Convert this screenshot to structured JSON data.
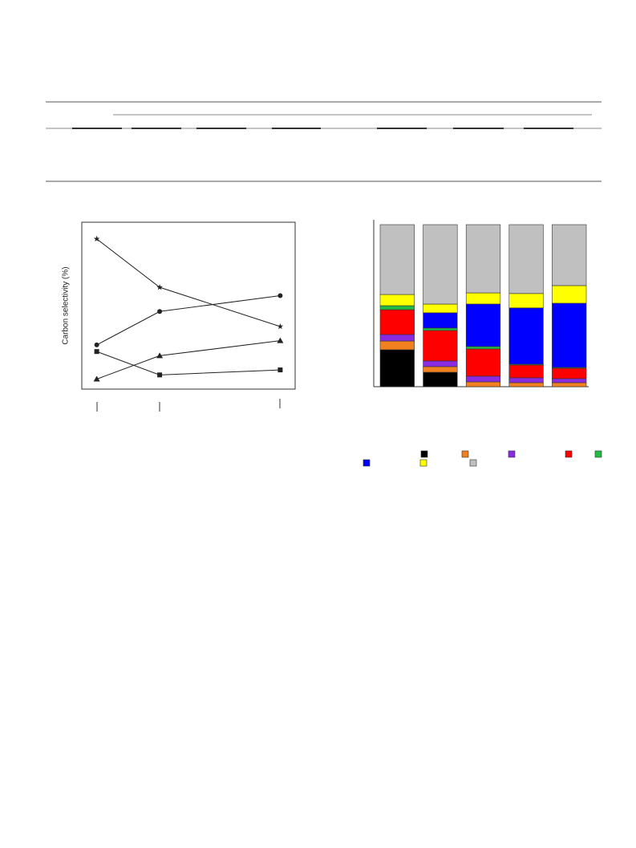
{
  "chart_data": [
    {
      "type": "line",
      "ylabel": "Carbon selectivity (%)",
      "xlim": [
        0,
        100
      ],
      "ylim": [
        0,
        100
      ],
      "x": [
        7,
        36.5,
        93
      ],
      "series": [
        {
          "marker": "star",
          "color": "#222222",
          "values": [
            90,
            61,
            37.5
          ]
        },
        {
          "marker": "circle",
          "color": "#222222",
          "values": [
            26.5,
            46.5,
            56
          ]
        },
        {
          "marker": "triangle",
          "color": "#222222",
          "values": [
            6,
            20,
            29
          ]
        },
        {
          "marker": "square",
          "color": "#222222",
          "values": [
            22.5,
            8.5,
            11.5
          ]
        }
      ]
    },
    {
      "type": "stacked_bar",
      "ylim": [
        0,
        100
      ],
      "categories": [
        null,
        null,
        null,
        null,
        null
      ],
      "series": [
        {
          "color": "#000000",
          "values": [
            22.8,
            8.9,
            0,
            0,
            0
          ]
        },
        {
          "color": "#f08020",
          "values": [
            5.4,
            3.5,
            3,
            2.5,
            2.5
          ]
        },
        {
          "color": "#8a2be2",
          "values": [
            4,
            3.5,
            3.5,
            3,
            2.5
          ]
        },
        {
          "color": "#ff0000",
          "values": [
            15.3,
            18.8,
            16.8,
            7.9,
            6.4
          ]
        },
        {
          "color": "#22bb44",
          "values": [
            2.5,
            1.5,
            1.5,
            0.5,
            0.5
          ]
        },
        {
          "color": "#0000ff",
          "values": [
            0,
            9.4,
            26.2,
            34.7,
            39.6
          ]
        },
        {
          "color": "#ffff00",
          "values": [
            6.9,
            5.4,
            6.9,
            8.9,
            10.9
          ]
        },
        {
          "color": "#c0c0c0",
          "values": [
            43.1,
            49,
            42.1,
            42.5,
            37.6
          ]
        }
      ]
    }
  ]
}
